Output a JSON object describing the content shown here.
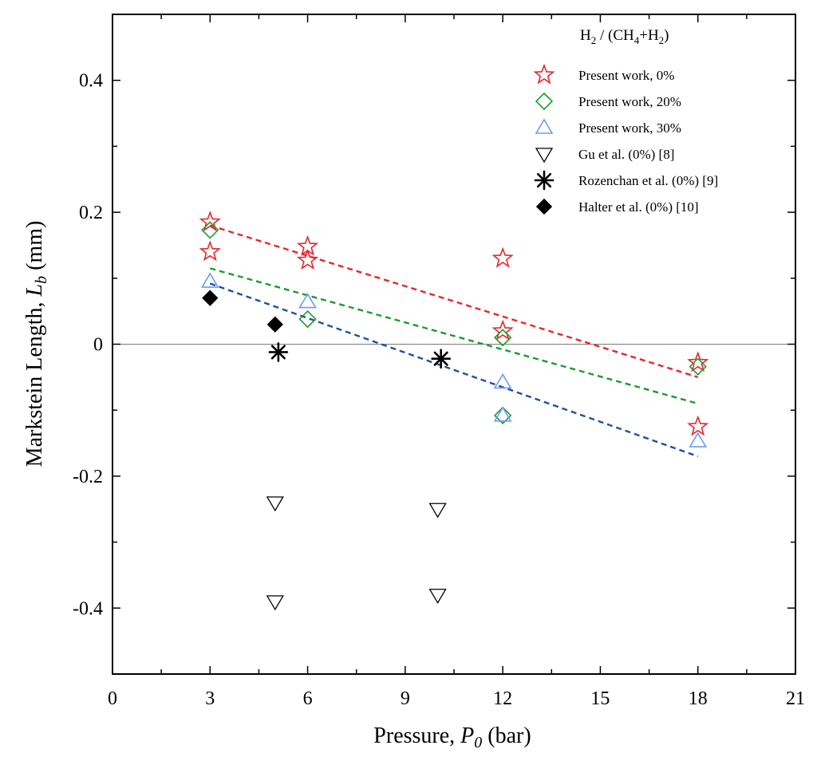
{
  "chart_data": {
    "type": "scatter",
    "xlabel": {
      "main": "Pressure, ",
      "symbol": "P",
      "sub": "0",
      "unit": " (bar)"
    },
    "ylabel": {
      "main": "Markstein Length, ",
      "symbol": "L",
      "sub": "b",
      "unit": " (mm)"
    },
    "xlim": [
      0,
      21
    ],
    "ylim": [
      -0.5,
      0.5
    ],
    "x_ticks": [
      0,
      3,
      6,
      9,
      12,
      15,
      18,
      21
    ],
    "x_tick_labels": [
      "0",
      "3",
      "6",
      "9",
      "12",
      "15",
      "18",
      "21"
    ],
    "y_ticks": [
      -0.4,
      -0.2,
      0,
      0.2,
      0.4
    ],
    "y_tick_labels": [
      "-0.4",
      "-0.2",
      "0",
      "0.2",
      "0.4"
    ],
    "zero_line": 0,
    "legend_title": {
      "a": "H",
      "a_sub": "2",
      "b": " / (CH",
      "b_sub": "4",
      "c": "+H",
      "c_sub": "2",
      "d": ")"
    },
    "legend_position": "top-right",
    "series": [
      {
        "name": "Present work, 0%",
        "marker": "star",
        "color": "#e8262b",
        "filled": false,
        "points": [
          [
            3,
            0.185
          ],
          [
            3,
            0.14
          ],
          [
            6,
            0.148
          ],
          [
            6,
            0.127
          ],
          [
            12,
            0.13
          ],
          [
            12,
            0.02
          ],
          [
            18,
            -0.028
          ],
          [
            18,
            -0.125
          ]
        ]
      },
      {
        "name": "Present work, 20%",
        "marker": "diamond",
        "color": "#1e9a2e",
        "filled": false,
        "points": [
          [
            3,
            0.173
          ],
          [
            6,
            0.038
          ],
          [
            12,
            0.01
          ],
          [
            12,
            -0.108
          ],
          [
            18,
            -0.034
          ]
        ]
      },
      {
        "name": "Present work, 30%",
        "marker": "triangle-up",
        "color": "#6f9ce8",
        "filled": false,
        "points": [
          [
            3,
            0.095
          ],
          [
            6,
            0.064
          ],
          [
            12,
            -0.058
          ],
          [
            12,
            -0.108
          ],
          [
            18,
            -0.147
          ]
        ]
      },
      {
        "name": "Gu et al. (0%) [8]",
        "marker": "triangle-down",
        "color": "#000000",
        "filled": false,
        "points": [
          [
            5,
            -0.24
          ],
          [
            5,
            -0.39
          ],
          [
            10,
            -0.25
          ],
          [
            10,
            -0.38
          ]
        ]
      },
      {
        "name": "Rozenchan et al. (0%) [9]",
        "marker": "asterisk",
        "color": "#000000",
        "filled": true,
        "points": [
          [
            5.1,
            -0.012
          ],
          [
            10.1,
            -0.022
          ]
        ]
      },
      {
        "name": "Halter et al. (0%) [10]",
        "marker": "diamond",
        "color": "#000000",
        "filled": true,
        "points": [
          [
            3,
            0.07
          ],
          [
            5,
            0.03
          ]
        ]
      }
    ],
    "fit_lines": [
      {
        "series": "Present work, 0%",
        "color": "#e8262b",
        "x": [
          3,
          18
        ],
        "y": [
          0.18,
          -0.05
        ]
      },
      {
        "series": "Present work, 20%",
        "color": "#1e9a2e",
        "x": [
          3,
          18
        ],
        "y": [
          0.115,
          -0.09
        ]
      },
      {
        "series": "Present work, 30%",
        "color": "#1f4fa5",
        "x": [
          3,
          18
        ],
        "y": [
          0.092,
          -0.17
        ]
      }
    ]
  }
}
